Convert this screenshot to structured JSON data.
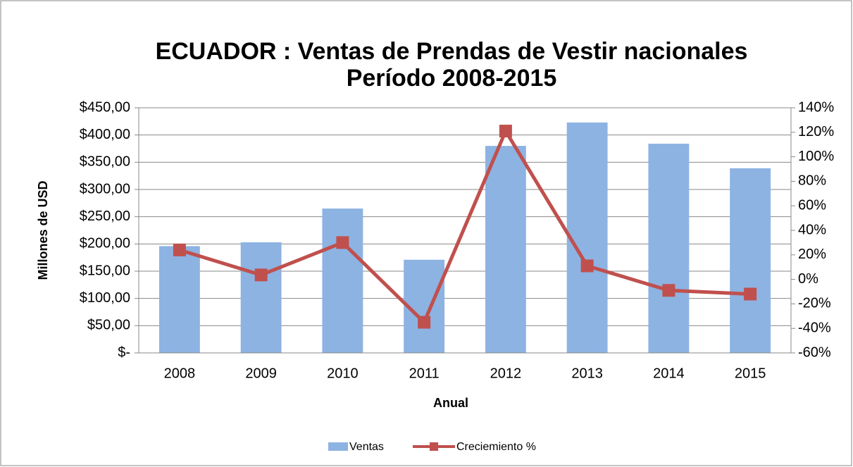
{
  "chart_data": {
    "type": "bar_line",
    "title": [
      "ECUADOR : Ventas de Prendas de Vestir nacionales",
      "Período 2008-2015"
    ],
    "x_label": "Anual",
    "y_label": "Millones de USD",
    "categories": [
      "2008",
      "2009",
      "2010",
      "2011",
      "2012",
      "2013",
      "2014",
      "2015"
    ],
    "series": [
      {
        "name": "Ventas",
        "type": "bar",
        "color": "#8db3e2",
        "values": [
          196,
          203,
          265,
          171,
          380,
          423,
          384,
          339
        ]
      },
      {
        "name": "Creciemiento %",
        "type": "line",
        "axis": "y2",
        "color": "#c0504d",
        "values": [
          24,
          3.6,
          30,
          -35,
          121,
          11,
          -9,
          -12
        ]
      }
    ],
    "ylim": [
      0,
      450
    ],
    "yticks": [
      {
        "value": 0,
        "label": "$-"
      },
      {
        "value": 50,
        "label": "$50,00"
      },
      {
        "value": 100,
        "label": "$100,00"
      },
      {
        "value": 150,
        "label": "$150,00"
      },
      {
        "value": 200,
        "label": "$200,00"
      },
      {
        "value": 250,
        "label": "$250,00"
      },
      {
        "value": 300,
        "label": "$300,00"
      },
      {
        "value": 350,
        "label": "$350,00"
      },
      {
        "value": 400,
        "label": "$400,00"
      },
      {
        "value": 450,
        "label": "$450,00"
      }
    ],
    "y2lim": [
      -60,
      140
    ],
    "y2ticks": [
      {
        "value": -60,
        "label": "-60%"
      },
      {
        "value": -40,
        "label": "-40%"
      },
      {
        "value": -20,
        "label": "-20%"
      },
      {
        "value": 0,
        "label": "0%"
      },
      {
        "value": 20,
        "label": "20%"
      },
      {
        "value": 40,
        "label": "40%"
      },
      {
        "value": 60,
        "label": "60%"
      },
      {
        "value": 80,
        "label": "80%"
      },
      {
        "value": 100,
        "label": "100%"
      },
      {
        "value": 120,
        "label": "120%"
      },
      {
        "value": 140,
        "label": "140%"
      }
    ],
    "grid": true,
    "legend": "bottom"
  }
}
